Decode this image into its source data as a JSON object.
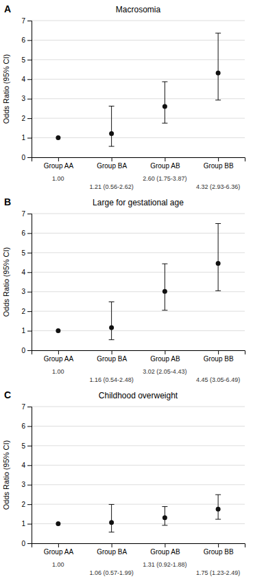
{
  "chart_data": [
    {
      "type": "errorbar",
      "title": "Macrosomia",
      "annotations": [
        "A"
      ],
      "y_label": "Odds Ratio (95% CI)",
      "categories": [
        "Group AA",
        "Group BA",
        "Group AB",
        "Group BB"
      ],
      "values": [
        1.0,
        1.21,
        2.6,
        4.32
      ],
      "ci_low": [
        null,
        0.56,
        1.75,
        2.93
      ],
      "ci_high": [
        null,
        2.62,
        3.87,
        6.36
      ],
      "value_labels": [
        "1.00",
        "1.21 (0.56-2.62)",
        "2.60 (1.75-3.87)",
        "4.32 (2.93-6.36)"
      ],
      "color": "#111111",
      "ylim": [
        0,
        7
      ],
      "yticks": [
        0,
        1,
        2,
        3,
        4,
        5,
        6,
        7
      ],
      "grid": true
    },
    {
      "type": "errorbar",
      "title": "Large for gestational age",
      "annotations": [
        "B"
      ],
      "y_label": "Odds Ratio (95% CI)",
      "categories": [
        "Group AA",
        "Group BA",
        "Group AB",
        "Group BB"
      ],
      "values": [
        1.0,
        1.16,
        3.02,
        4.45
      ],
      "ci_low": [
        null,
        0.54,
        2.05,
        3.05
      ],
      "ci_high": [
        null,
        2.48,
        4.43,
        6.49
      ],
      "value_labels": [
        "1.00",
        "1.16 (0.54-2.48)",
        "3.02 (2.05-4.43)",
        "4.45 (3.05-6.49)"
      ],
      "color": "#111111",
      "ylim": [
        0,
        7
      ],
      "yticks": [
        0,
        1,
        2,
        3,
        4,
        5,
        6,
        7
      ],
      "grid": true
    },
    {
      "type": "errorbar",
      "title": "Childhood overweight",
      "annotations": [
        "C"
      ],
      "y_label": "Odds Ratio (95% CI)",
      "categories": [
        "Group AA",
        "Group BA",
        "Group AB",
        "Group BB"
      ],
      "values": [
        1.0,
        1.06,
        1.31,
        1.75
      ],
      "ci_low": [
        null,
        0.57,
        0.92,
        1.23
      ],
      "ci_high": [
        null,
        1.99,
        1.88,
        2.49
      ],
      "value_labels": [
        "1.00",
        "1.06 (0.57-1.99)",
        "1.31 (0.92-1.88)",
        "1.75 (1.23-2.49)"
      ],
      "color": "#111111",
      "ylim": [
        0,
        7
      ],
      "yticks": [
        0,
        1,
        2,
        3,
        4,
        5,
        6,
        7
      ],
      "grid": true
    }
  ]
}
